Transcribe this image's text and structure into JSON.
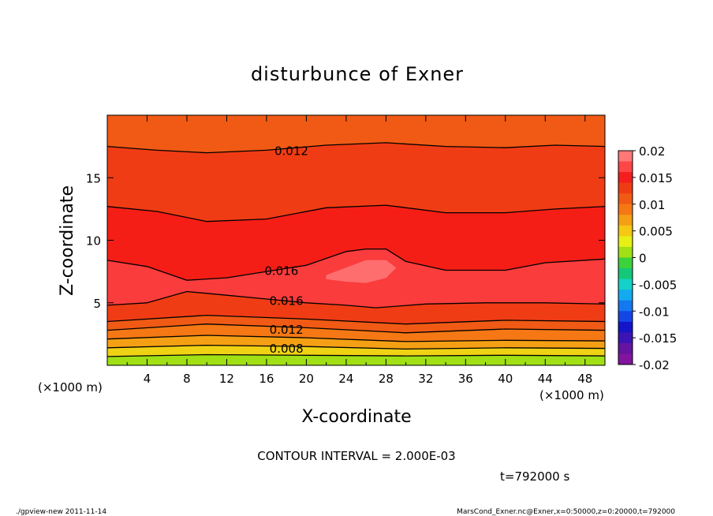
{
  "chart_data": {
    "type": "contour",
    "title": "disturbunce of Exner",
    "xlabel": "X-coordinate",
    "ylabel": "Z-coordinate",
    "x_unit": "(×1000 m)",
    "z_unit": "(×1000 m)",
    "xlim": [
      0,
      50
    ],
    "ylim": [
      0,
      20
    ],
    "xticks": [
      "4",
      "8",
      "12",
      "16",
      "20",
      "24",
      "28",
      "32",
      "36",
      "40",
      "44",
      "48"
    ],
    "yticks": [
      "5",
      "10",
      "15"
    ],
    "contour_interval_text": "CONTOUR INTERVAL = 2.000E-03",
    "time_text": "t=792000 s",
    "footer_left": "./gpview-new   2011-11-14",
    "footer_right": "MarsCond_Exner.nc@Exner,x=0:50000,z=0:20000,t=792000",
    "contour_labels": [
      {
        "text": "0.012",
        "x": 18.5,
        "z": 17.2
      },
      {
        "text": "0.016",
        "x": 17.5,
        "z": 7.6
      },
      {
        "text": "0.016",
        "x": 18,
        "z": 5.2
      },
      {
        "text": "0.012",
        "x": 18,
        "z": 2.9
      },
      {
        "text": "0.008",
        "x": 18,
        "z": 1.4
      }
    ],
    "contour_lines": [
      {
        "level": 0.006,
        "points": [
          [
            0,
            0.7
          ],
          [
            10,
            0.85
          ],
          [
            20,
            0.8
          ],
          [
            30,
            0.75
          ],
          [
            40,
            0.8
          ],
          [
            50,
            0.75
          ]
        ]
      },
      {
        "level": 0.008,
        "points": [
          [
            0,
            1.4
          ],
          [
            10,
            1.6
          ],
          [
            20,
            1.5
          ],
          [
            30,
            1.3
          ],
          [
            40,
            1.4
          ],
          [
            50,
            1.35
          ]
        ]
      },
      {
        "level": 0.01,
        "points": [
          [
            0,
            2.1
          ],
          [
            10,
            2.4
          ],
          [
            20,
            2.2
          ],
          [
            30,
            1.9
          ],
          [
            40,
            2.0
          ],
          [
            50,
            1.95
          ]
        ]
      },
      {
        "level": 0.012,
        "points": [
          [
            0,
            2.8
          ],
          [
            10,
            3.3
          ],
          [
            20,
            3.0
          ],
          [
            30,
            2.6
          ],
          [
            40,
            2.9
          ],
          [
            50,
            2.8
          ]
        ]
      },
      {
        "level": 0.014,
        "points": [
          [
            0,
            3.5
          ],
          [
            10,
            4.0
          ],
          [
            20,
            3.7
          ],
          [
            30,
            3.3
          ],
          [
            40,
            3.6
          ],
          [
            50,
            3.5
          ]
        ]
      },
      {
        "level": 0.016,
        "points": [
          [
            0,
            4.8
          ],
          [
            4,
            5.0
          ],
          [
            8,
            5.9
          ],
          [
            12,
            5.6
          ],
          [
            16,
            5.3
          ],
          [
            20,
            5.0
          ],
          [
            24,
            4.8
          ],
          [
            27,
            4.6
          ],
          [
            32,
            4.9
          ],
          [
            38,
            5.0
          ],
          [
            44,
            5.0
          ],
          [
            50,
            4.9
          ]
        ]
      },
      {
        "level": 0.016,
        "points": [
          [
            0,
            8.4
          ],
          [
            4,
            7.9
          ],
          [
            8,
            6.8
          ],
          [
            12,
            7.0
          ],
          [
            16,
            7.5
          ],
          [
            20,
            8.0
          ],
          [
            24,
            9.1
          ],
          [
            26,
            9.3
          ],
          [
            28,
            9.3
          ],
          [
            30,
            8.3
          ],
          [
            34,
            7.6
          ],
          [
            40,
            7.6
          ],
          [
            44,
            8.2
          ],
          [
            50,
            8.5
          ]
        ]
      },
      {
        "level": 0.014,
        "points": [
          [
            0,
            12.7
          ],
          [
            5,
            12.3
          ],
          [
            10,
            11.5
          ],
          [
            16,
            11.7
          ],
          [
            22,
            12.6
          ],
          [
            28,
            12.8
          ],
          [
            34,
            12.2
          ],
          [
            40,
            12.2
          ],
          [
            45,
            12.5
          ],
          [
            50,
            12.7
          ]
        ]
      },
      {
        "level": 0.012,
        "points": [
          [
            0,
            17.5
          ],
          [
            5,
            17.2
          ],
          [
            10,
            17.0
          ],
          [
            16,
            17.2
          ],
          [
            22,
            17.6
          ],
          [
            28,
            17.8
          ],
          [
            34,
            17.5
          ],
          [
            40,
            17.4
          ],
          [
            45,
            17.6
          ],
          [
            50,
            17.5
          ]
        ]
      }
    ],
    "fill_regions": [
      {
        "color": "#f05a14",
        "points": [
          [
            0,
            20
          ],
          [
            50,
            20
          ],
          [
            50,
            17.5
          ],
          [
            45,
            17.6
          ],
          [
            40,
            17.4
          ],
          [
            34,
            17.5
          ],
          [
            28,
            17.8
          ],
          [
            22,
            17.6
          ],
          [
            16,
            17.2
          ],
          [
            10,
            17.0
          ],
          [
            5,
            17.2
          ],
          [
            0,
            17.5
          ]
        ]
      },
      {
        "color": "#f03c14",
        "points": [
          [
            0,
            17.5
          ],
          [
            5,
            17.2
          ],
          [
            10,
            17.0
          ],
          [
            16,
            17.2
          ],
          [
            22,
            17.6
          ],
          [
            28,
            17.8
          ],
          [
            34,
            17.5
          ],
          [
            40,
            17.4
          ],
          [
            45,
            17.6
          ],
          [
            50,
            17.5
          ],
          [
            50,
            12.7
          ],
          [
            45,
            12.5
          ],
          [
            40,
            12.2
          ],
          [
            34,
            12.2
          ],
          [
            28,
            12.8
          ],
          [
            22,
            12.6
          ],
          [
            16,
            11.7
          ],
          [
            10,
            11.5
          ],
          [
            5,
            12.3
          ],
          [
            0,
            12.7
          ]
        ]
      },
      {
        "color": "#f41e16",
        "points": [
          [
            0,
            12.7
          ],
          [
            5,
            12.3
          ],
          [
            10,
            11.5
          ],
          [
            16,
            11.7
          ],
          [
            22,
            12.6
          ],
          [
            28,
            12.8
          ],
          [
            34,
            12.2
          ],
          [
            40,
            12.2
          ],
          [
            45,
            12.5
          ],
          [
            50,
            12.7
          ],
          [
            50,
            4.9
          ],
          [
            0,
            4.8
          ]
        ]
      },
      {
        "color": "#fa3c3c",
        "points": [
          [
            0,
            8.4
          ],
          [
            4,
            7.9
          ],
          [
            8,
            6.8
          ],
          [
            12,
            7.0
          ],
          [
            16,
            7.5
          ],
          [
            20,
            8.0
          ],
          [
            24,
            9.1
          ],
          [
            26,
            9.3
          ],
          [
            28,
            9.3
          ],
          [
            30,
            8.3
          ],
          [
            34,
            7.6
          ],
          [
            40,
            7.6
          ],
          [
            44,
            8.2
          ],
          [
            50,
            8.5
          ],
          [
            50,
            4.9
          ],
          [
            44,
            5.0
          ],
          [
            38,
            5.0
          ],
          [
            32,
            4.9
          ],
          [
            27,
            4.6
          ],
          [
            24,
            4.8
          ],
          [
            20,
            5.0
          ],
          [
            16,
            5.3
          ],
          [
            12,
            5.6
          ],
          [
            8,
            5.9
          ],
          [
            4,
            5.0
          ],
          [
            0,
            4.8
          ]
        ]
      },
      {
        "color": "#ff6e6e",
        "points": [
          [
            22,
            7.2
          ],
          [
            24,
            7.8
          ],
          [
            26,
            8.4
          ],
          [
            28,
            8.4
          ],
          [
            29,
            7.8
          ],
          [
            28,
            7.0
          ],
          [
            26,
            6.6
          ],
          [
            24,
            6.7
          ],
          [
            22,
            6.9
          ]
        ]
      },
      {
        "color": "#f03c14",
        "points": [
          [
            0,
            4.8
          ],
          [
            4,
            5.0
          ],
          [
            8,
            5.9
          ],
          [
            12,
            5.6
          ],
          [
            16,
            5.3
          ],
          [
            20,
            5.0
          ],
          [
            24,
            4.8
          ],
          [
            27,
            4.6
          ],
          [
            32,
            4.9
          ],
          [
            38,
            5.0
          ],
          [
            44,
            5.0
          ],
          [
            50,
            4.9
          ],
          [
            50,
            3.5
          ],
          [
            40,
            3.6
          ],
          [
            30,
            3.3
          ],
          [
            20,
            3.7
          ],
          [
            10,
            4.0
          ],
          [
            0,
            3.5
          ]
        ]
      },
      {
        "color": "#f05a14",
        "points": [
          [
            0,
            3.5
          ],
          [
            10,
            4.0
          ],
          [
            20,
            3.7
          ],
          [
            30,
            3.3
          ],
          [
            40,
            3.6
          ],
          [
            50,
            3.5
          ],
          [
            50,
            2.8
          ],
          [
            40,
            2.9
          ],
          [
            30,
            2.6
          ],
          [
            20,
            3.0
          ],
          [
            10,
            3.3
          ],
          [
            0,
            2.8
          ]
        ]
      },
      {
        "color": "#f57814",
        "points": [
          [
            0,
            2.8
          ],
          [
            10,
            3.3
          ],
          [
            20,
            3.0
          ],
          [
            30,
            2.6
          ],
          [
            40,
            2.9
          ],
          [
            50,
            2.8
          ],
          [
            50,
            1.95
          ],
          [
            40,
            2.0
          ],
          [
            30,
            1.9
          ],
          [
            20,
            2.2
          ],
          [
            10,
            2.4
          ],
          [
            0,
            2.1
          ]
        ]
      },
      {
        "color": "#f5a014",
        "points": [
          [
            0,
            2.1
          ],
          [
            10,
            2.4
          ],
          [
            20,
            2.2
          ],
          [
            30,
            1.9
          ],
          [
            40,
            2.0
          ],
          [
            50,
            1.95
          ],
          [
            50,
            1.35
          ],
          [
            40,
            1.4
          ],
          [
            30,
            1.3
          ],
          [
            20,
            1.5
          ],
          [
            10,
            1.6
          ],
          [
            0,
            1.4
          ]
        ]
      },
      {
        "color": "#f0d214",
        "points": [
          [
            0,
            1.4
          ],
          [
            10,
            1.6
          ],
          [
            20,
            1.5
          ],
          [
            30,
            1.3
          ],
          [
            40,
            1.4
          ],
          [
            50,
            1.35
          ],
          [
            50,
            0.75
          ],
          [
            40,
            0.8
          ],
          [
            30,
            0.75
          ],
          [
            20,
            0.8
          ],
          [
            10,
            0.85
          ],
          [
            0,
            0.7
          ]
        ]
      },
      {
        "color": "#a0e014",
        "points": [
          [
            0,
            0.7
          ],
          [
            10,
            0.85
          ],
          [
            20,
            0.8
          ],
          [
            30,
            0.75
          ],
          [
            40,
            0.8
          ],
          [
            50,
            0.75
          ],
          [
            50,
            0
          ],
          [
            0,
            0
          ]
        ]
      }
    ],
    "colorbar": {
      "labels": [
        "0.02",
        "0.015",
        "0.01",
        "0.005",
        "0",
        "-0.005",
        "-0.01",
        "-0.015",
        "-0.02"
      ],
      "colors": [
        "#ff7878",
        "#ff4646",
        "#f51e1e",
        "#f03c14",
        "#f05a14",
        "#f57814",
        "#f5a014",
        "#f5c814",
        "#e6f014",
        "#a0e014",
        "#3cd23c",
        "#14c878",
        "#14d2c8",
        "#14aaf0",
        "#1478f0",
        "#1446e6",
        "#1414c8",
        "#3c14b4",
        "#6414a0",
        "#8214a0"
      ]
    }
  }
}
